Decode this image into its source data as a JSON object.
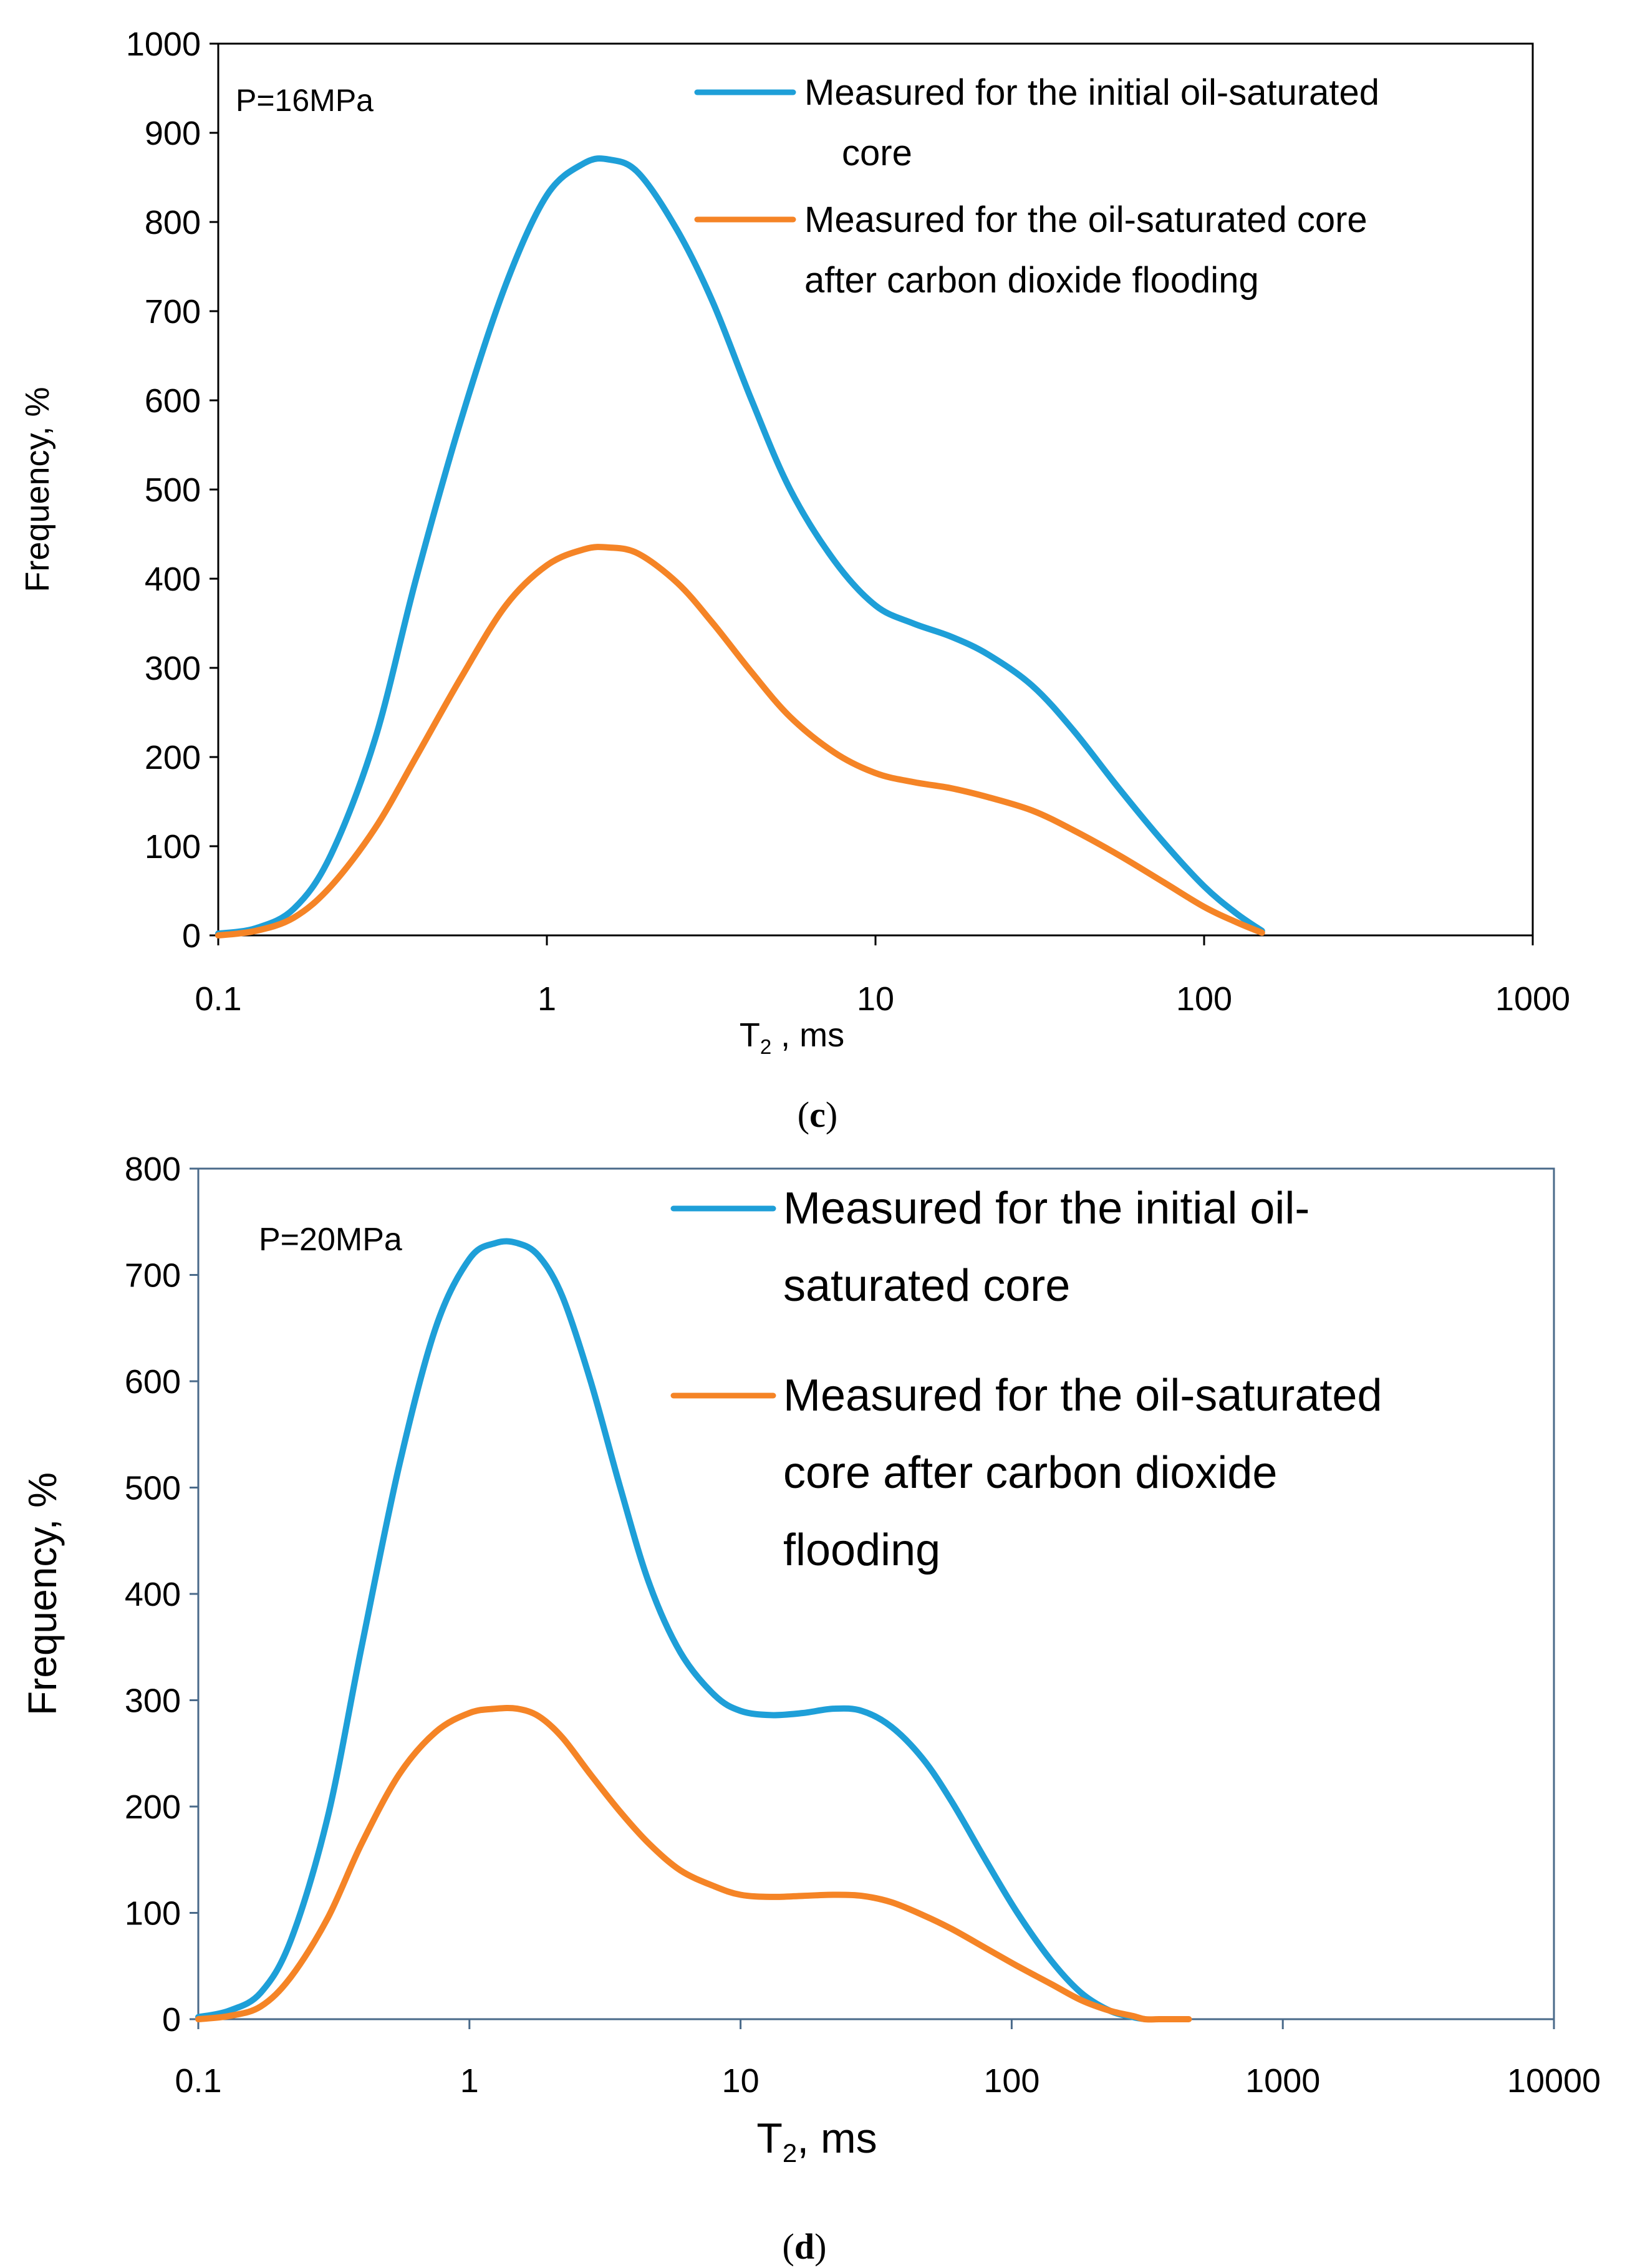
{
  "colors": {
    "series_initial": "#1E9FD8",
    "series_after": "#F58426",
    "axis_c": "#000000",
    "axis_d": "#4A6A8A",
    "text": "#000000"
  },
  "chart_data": [
    {
      "type": "line",
      "panel_label": "c",
      "xscale": "log",
      "xlim": [
        0.1,
        1000
      ],
      "ylim": [
        0,
        1000
      ],
      "xticks": [
        0.1,
        1,
        10,
        100,
        1000
      ],
      "xtick_labels": [
        "0.1",
        "1",
        "10",
        "100",
        "1000"
      ],
      "yticks": [
        0,
        100,
        200,
        300,
        400,
        500,
        600,
        700,
        800,
        900,
        1000
      ],
      "ytick_labels": [
        "0",
        "100",
        "200",
        "300",
        "400",
        "500",
        "600",
        "700",
        "800",
        "900",
        "1000"
      ],
      "xlabel_main": "T",
      "xlabel_sub": "2",
      "xlabel_rest": " , ms",
      "ylabel": "Frequency, %",
      "annotation": "P=16MPa",
      "legend_position": "top-right",
      "series": [
        {
          "name": "Measured for the initial oil-saturated core",
          "legend_lines": [
            "Measured for the initial oil-saturated",
            "core"
          ],
          "x": [
            0.1,
            0.13,
            0.17,
            0.22,
            0.3,
            0.4,
            0.55,
            0.75,
            1.0,
            1.3,
            1.55,
            1.9,
            2.5,
            3.2,
            4.2,
            5.5,
            7.5,
            10,
            13,
            17,
            22,
            30,
            40,
            55,
            75,
            100,
            125,
            150
          ],
          "y": [
            2,
            8,
            30,
            90,
            220,
            400,
            580,
            730,
            830,
            866,
            870,
            855,
            790,
            710,
            600,
            500,
            420,
            370,
            350,
            335,
            315,
            280,
            230,
            165,
            105,
            55,
            25,
            5
          ]
        },
        {
          "name": "Measured for the oil-saturated core after carbon dioxide flooding",
          "legend_lines": [
            "Measured for the oil-saturated core",
            "after carbon dioxide flooding"
          ],
          "x": [
            0.1,
            0.13,
            0.17,
            0.22,
            0.3,
            0.4,
            0.55,
            0.75,
            1.0,
            1.3,
            1.55,
            1.9,
            2.5,
            3.2,
            4.2,
            5.5,
            7.5,
            10,
            13,
            17,
            22,
            30,
            40,
            55,
            75,
            100,
            125,
            150
          ],
          "y": [
            0,
            5,
            20,
            55,
            120,
            200,
            290,
            370,
            415,
            433,
            435,
            428,
            395,
            350,
            295,
            245,
            205,
            182,
            172,
            165,
            155,
            140,
            118,
            90,
            60,
            32,
            15,
            3
          ]
        }
      ]
    },
    {
      "type": "line",
      "panel_label": "d",
      "xscale": "log",
      "xlim": [
        0.1,
        10000
      ],
      "ylim": [
        0,
        800
      ],
      "xticks": [
        0.1,
        1,
        10,
        100,
        1000,
        10000
      ],
      "xtick_labels": [
        "0.1",
        "1",
        "10",
        "100",
        "1000",
        "10000"
      ],
      "yticks": [
        0,
        100,
        200,
        300,
        400,
        500,
        600,
        700,
        800
      ],
      "ytick_labels": [
        "0",
        "100",
        "200",
        "300",
        "400",
        "500",
        "600",
        "700",
        "800"
      ],
      "xlabel_main": "T",
      "xlabel_sub": "2",
      "xlabel_rest": ", ms",
      "ylabel": "Frequency, %",
      "annotation": "P=20MPa",
      "legend_position": "top-right",
      "series": [
        {
          "name": "Measured for the initial oil-saturated core",
          "legend_lines": [
            "Measured for the initial oil-",
            "saturated core"
          ],
          "x": [
            0.1,
            0.13,
            0.17,
            0.22,
            0.3,
            0.4,
            0.55,
            0.75,
            1.0,
            1.25,
            1.5,
            1.8,
            2.2,
            2.8,
            3.6,
            4.6,
            6,
            8,
            10,
            13,
            17,
            22,
            28,
            36,
            47,
            60,
            80,
            105,
            140,
            180,
            230,
            280,
            310
          ],
          "y": [
            2,
            8,
            25,
            75,
            190,
            350,
            520,
            650,
            715,
            730,
            730,
            718,
            680,
            600,
            500,
            410,
            345,
            305,
            290,
            286,
            288,
            292,
            290,
            275,
            245,
            205,
            150,
            100,
            55,
            25,
            8,
            2,
            0
          ]
        },
        {
          "name": "Measured for the oil-saturated core after carbon dioxide flooding",
          "legend_lines": [
            "Measured for the oil-saturated",
            "core after carbon dioxide",
            "flooding"
          ],
          "x": [
            0.1,
            0.13,
            0.17,
            0.22,
            0.3,
            0.4,
            0.55,
            0.75,
            1.0,
            1.25,
            1.5,
            1.8,
            2.2,
            2.8,
            3.6,
            4.6,
            6,
            8,
            10,
            13,
            17,
            22,
            28,
            36,
            47,
            60,
            80,
            105,
            140,
            180,
            230,
            280,
            310,
            350,
            400,
            450
          ],
          "y": [
            0,
            3,
            12,
            40,
            95,
            165,
            230,
            270,
            288,
            292,
            292,
            285,
            265,
            230,
            195,
            165,
            140,
            125,
            117,
            115,
            116,
            117,
            116,
            110,
            98,
            85,
            67,
            50,
            33,
            18,
            8,
            3,
            0,
            0,
            0,
            0
          ]
        }
      ]
    }
  ]
}
